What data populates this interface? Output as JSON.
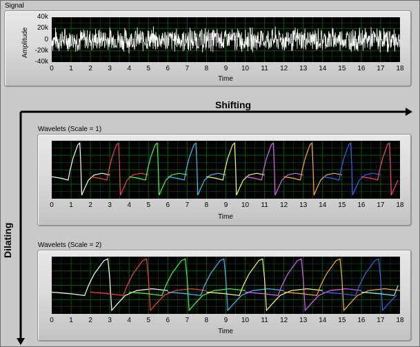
{
  "signal_panel": {
    "title": "Signal",
    "xlabel": "Time",
    "ylabel": "Amplitude"
  },
  "wavelet1_panel": {
    "title": "Wavelets (Scale = 1)",
    "xlabel": "Time"
  },
  "wavelet2_panel": {
    "title": "Wavelets (Scale = 2)",
    "xlabel": "Time"
  },
  "arrows": {
    "shifting": "Shifting",
    "dilating": "Dilating"
  },
  "colors": {
    "plot_bg": "#000000",
    "grid": "#0b5a0b",
    "signal": "#ffffff",
    "frame": "#c9c9c9"
  },
  "x_ticks": [
    "0",
    "1",
    "2",
    "3",
    "4",
    "5",
    "6",
    "7",
    "8",
    "9",
    "10",
    "11",
    "12",
    "13",
    "14",
    "15",
    "16",
    "17",
    "18"
  ],
  "y_ticks": [
    "40k",
    "20k",
    "0",
    "-20k",
    "-40k"
  ],
  "chart_data": [
    {
      "type": "line",
      "title": "Signal",
      "xlabel": "Time",
      "ylabel": "Amplitude",
      "xlim": [
        0,
        18
      ],
      "ylim": [
        -40000,
        40000
      ],
      "series": [
        {
          "name": "",
          "color": "#ffffff",
          "description_values": "noise approx within -25000..25000"
        }
      ]
    },
    {
      "type": "line",
      "title": "Wavelets (Scale = 1)",
      "xlabel": "Time",
      "xlim": [
        0,
        18
      ],
      "series": [
        {
          "color": "#ffffff",
          "start": 0
        },
        {
          "color": "#ff4040",
          "start": 2
        },
        {
          "color": "#40ff40",
          "start": 4
        },
        {
          "color": "#40c0ff",
          "start": 6
        },
        {
          "color": "#ffff60",
          "start": 8
        },
        {
          "color": "#e060ff",
          "start": 10
        },
        {
          "color": "#ffb030",
          "start": 12
        },
        {
          "color": "#4060ff",
          "start": 14
        },
        {
          "color": "#ff4080",
          "start": 16
        }
      ]
    },
    {
      "type": "line",
      "title": "Wavelets (Scale = 2)",
      "xlabel": "Time",
      "xlim": [
        0,
        18
      ],
      "series": [
        {
          "color": "#ffffff",
          "start": 0
        },
        {
          "color": "#ff4040",
          "start": 2
        },
        {
          "color": "#40ff40",
          "start": 4
        },
        {
          "color": "#40c0ff",
          "start": 6
        },
        {
          "color": "#ffff60",
          "start": 8
        },
        {
          "color": "#e060ff",
          "start": 10
        },
        {
          "color": "#ffb030",
          "start": 12
        },
        {
          "color": "#4060ff",
          "start": 14
        },
        {
          "color": "#80ffff",
          "start": 16
        }
      ]
    }
  ]
}
